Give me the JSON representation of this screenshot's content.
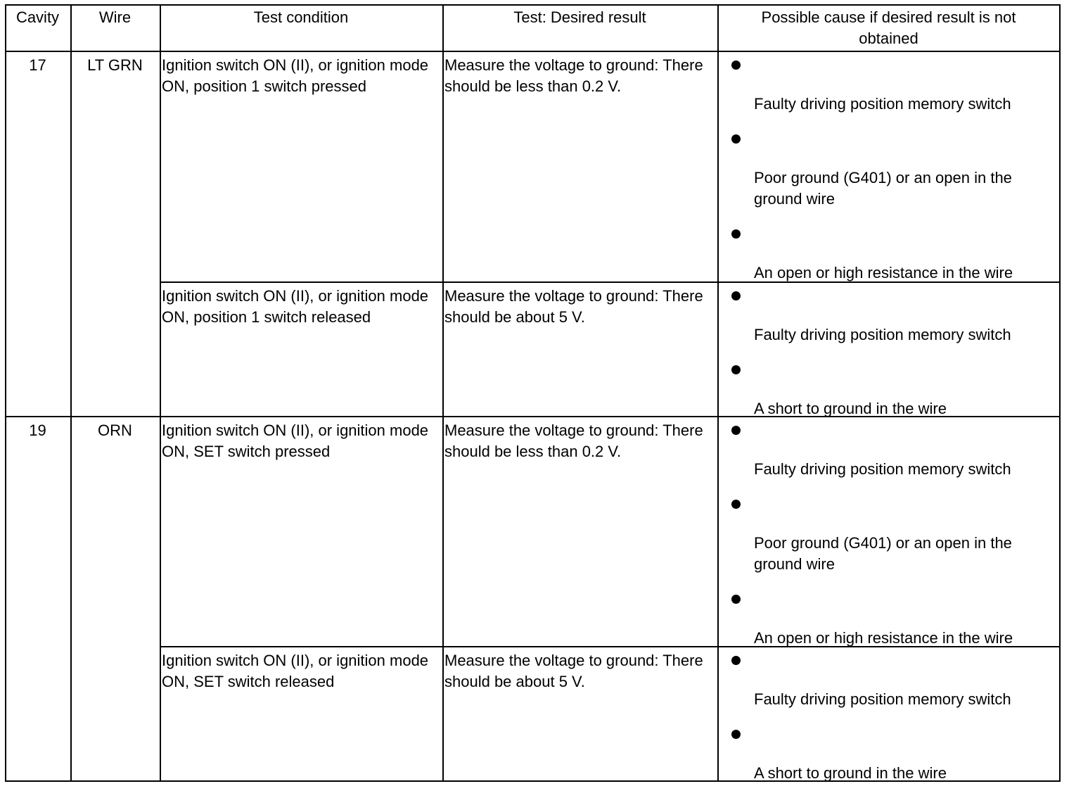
{
  "headers": [
    "Cavity",
    "Wire",
    "Test condition",
    "Test: Desired result",
    "Possible cause if desired result is not obtained"
  ],
  "groups": [
    {
      "cavity": "17",
      "wire": "LT GRN",
      "rows": [
        {
          "condition": "Ignition switch ON (II), or ignition mode ON, position 1 switch pressed",
          "result": "Measure the voltage to ground: There should be less than 0.2 V.",
          "causes": [
            "Faulty driving position memory switch",
            "Poor ground (G401) or an open in the ground wire",
            "An open or high resistance in the wire"
          ]
        },
        {
          "condition": "Ignition switch ON (II), or ignition mode ON, position 1 switch released",
          "result": "Measure the voltage to ground: There should be about 5 V.",
          "causes": [
            "Faulty driving position memory switch",
            "A short to ground in the wire"
          ]
        }
      ]
    },
    {
      "cavity": "19",
      "wire": "ORN",
      "rows": [
        {
          "condition": "Ignition switch ON (II), or ignition mode ON, SET switch pressed",
          "result": "Measure the voltage to ground: There should be less than 0.2 V.",
          "causes": [
            "Faulty driving position memory switch",
            "Poor ground (G401) or an open in the ground wire",
            "An open or high resistance in the wire"
          ]
        },
        {
          "condition": "Ignition switch ON (II), or ignition mode ON, SET switch released",
          "result": "Measure the voltage to ground: There should be about 5 V.",
          "causes": [
            "Faulty driving position memory switch",
            "A short to ground in the wire"
          ]
        }
      ]
    }
  ]
}
